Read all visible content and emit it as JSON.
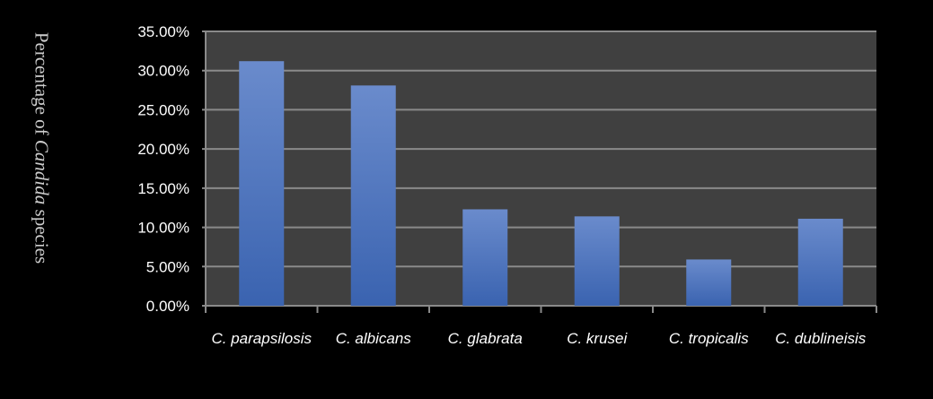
{
  "chart_data": {
    "type": "bar",
    "ylabel_prefix": "Percentage of ",
    "ylabel_italic": "Candida",
    "ylabel_suffix": " species",
    "categories": [
      "C. parapsilosis",
      "C. albicans",
      "C. glabrata",
      "C. krusei",
      "C. tropicalis",
      "C. dublineisis"
    ],
    "values": [
      31.2,
      28.1,
      12.3,
      11.4,
      5.9,
      11.1
    ],
    "ylim": [
      0,
      35
    ],
    "yticks": [
      "0.00%",
      "5.00%",
      "10.00%",
      "15.00%",
      "20.00%",
      "25.00%",
      "30.00%",
      "35.00%"
    ],
    "grid": true,
    "colors": {
      "bar_top": "#6a8bcc",
      "bar_bottom": "#3a63b0",
      "plot_bg": "#404040",
      "grid": "#8a8a8a"
    }
  }
}
